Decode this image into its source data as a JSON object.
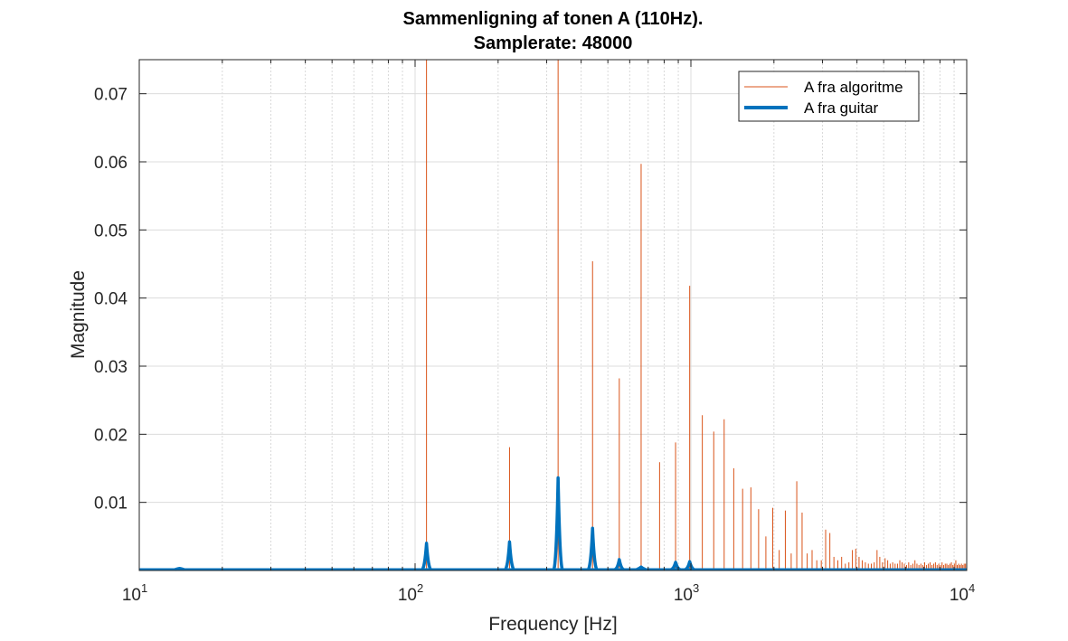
{
  "chart_data": {
    "type": "line",
    "title": [
      "Sammenligning af tonen A (110Hz).",
      "Samplerate: 48000"
    ],
    "xlabel": "Frequency [Hz]",
    "ylabel": "Magnitude",
    "xscale": "log",
    "xlim": [
      10,
      10000
    ],
    "ylim": [
      0,
      0.075
    ],
    "x_ticks": [
      {
        "base": "10",
        "exp": "1"
      },
      {
        "base": "10",
        "exp": "2"
      },
      {
        "base": "10",
        "exp": "3"
      },
      {
        "base": "10",
        "exp": "4"
      }
    ],
    "y_ticks": [
      "0.01",
      "0.02",
      "0.03",
      "0.04",
      "0.05",
      "0.06",
      "0.07"
    ],
    "grid": true,
    "legend_position": "top-right",
    "colors": {
      "algoritme": "#D95319",
      "guitar": "#0072BD"
    },
    "series": [
      {
        "name": "A fra algoritme",
        "style": "thin",
        "peaks": [
          [
            110,
            0.075
          ],
          [
            220,
            0.0181
          ],
          [
            330,
            0.075
          ],
          [
            440,
            0.0454
          ],
          [
            550,
            0.0282
          ],
          [
            660,
            0.0597
          ],
          [
            770,
            0.0159
          ],
          [
            880,
            0.0188
          ],
          [
            990,
            0.0418
          ],
          [
            1100,
            0.0228
          ],
          [
            1210,
            0.0204
          ],
          [
            1320,
            0.0222
          ],
          [
            1430,
            0.015
          ],
          [
            1540,
            0.012
          ],
          [
            1650,
            0.0122
          ],
          [
            1760,
            0.009
          ],
          [
            1870,
            0.005
          ],
          [
            1980,
            0.0092
          ],
          [
            2090,
            0.003
          ],
          [
            2200,
            0.0088
          ],
          [
            2310,
            0.0025
          ],
          [
            2420,
            0.0131
          ],
          [
            2530,
            0.0085
          ],
          [
            2640,
            0.0025
          ],
          [
            2750,
            0.003
          ],
          [
            2860,
            0.0015
          ],
          [
            2970,
            0.0015
          ],
          [
            3080,
            0.006
          ],
          [
            3190,
            0.0055
          ],
          [
            3300,
            0.002
          ],
          [
            3410,
            0.0015
          ],
          [
            3520,
            0.002
          ],
          [
            3630,
            0.001
          ],
          [
            3740,
            0.0012
          ],
          [
            3850,
            0.003
          ],
          [
            3960,
            0.0032
          ],
          [
            4070,
            0.002
          ],
          [
            4180,
            0.0015
          ],
          [
            4290,
            0.0012
          ],
          [
            4400,
            0.001
          ],
          [
            4510,
            0.001
          ],
          [
            4620,
            0.0012
          ],
          [
            4730,
            0.003
          ],
          [
            4840,
            0.002
          ],
          [
            4950,
            0.0012
          ],
          [
            5060,
            0.0018
          ],
          [
            5170,
            0.0015
          ],
          [
            5280,
            0.001
          ],
          [
            5390,
            0.0012
          ],
          [
            5500,
            0.001
          ],
          [
            5610,
            0.001
          ],
          [
            5720,
            0.0015
          ],
          [
            5830,
            0.0012
          ],
          [
            5940,
            0.001
          ],
          [
            6050,
            0.0008
          ],
          [
            6160,
            0.0012
          ],
          [
            6270,
            0.0008
          ],
          [
            6380,
            0.001
          ],
          [
            6490,
            0.0015
          ],
          [
            6600,
            0.001
          ],
          [
            6710,
            0.0008
          ],
          [
            6820,
            0.001
          ],
          [
            6930,
            0.0008
          ],
          [
            7040,
            0.0012
          ],
          [
            7150,
            0.0008
          ],
          [
            7260,
            0.001
          ],
          [
            7370,
            0.0012
          ],
          [
            7480,
            0.0008
          ],
          [
            7590,
            0.001
          ],
          [
            7700,
            0.0012
          ],
          [
            7810,
            0.0008
          ],
          [
            7920,
            0.001
          ],
          [
            8030,
            0.0008
          ],
          [
            8140,
            0.0012
          ],
          [
            8250,
            0.0008
          ],
          [
            8360,
            0.001
          ],
          [
            8470,
            0.001
          ],
          [
            8580,
            0.0008
          ],
          [
            8690,
            0.001
          ],
          [
            8800,
            0.0012
          ],
          [
            8910,
            0.0008
          ],
          [
            9020,
            0.001
          ],
          [
            9130,
            0.0015
          ],
          [
            9240,
            0.0008
          ],
          [
            9350,
            0.001
          ],
          [
            9460,
            0.0008
          ],
          [
            9570,
            0.001
          ],
          [
            9680,
            0.0008
          ],
          [
            9790,
            0.001
          ],
          [
            9900,
            0.001
          ]
        ]
      },
      {
        "name": "A fra guitar",
        "style": "thick",
        "peaks": [
          [
            14,
            0.0003
          ],
          [
            110,
            0.004
          ],
          [
            220,
            0.0042
          ],
          [
            330,
            0.0136
          ],
          [
            440,
            0.0062
          ],
          [
            550,
            0.0016
          ],
          [
            660,
            0.0005
          ],
          [
            880,
            0.0012
          ],
          [
            990,
            0.0013
          ]
        ]
      }
    ]
  }
}
